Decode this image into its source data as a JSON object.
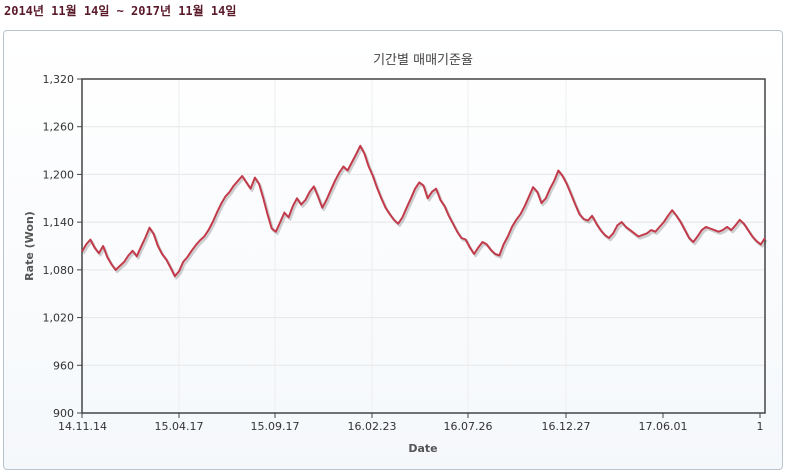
{
  "header": {
    "period_label": "2014년 11월 14일 ~ 2017년 11월 14일"
  },
  "chart_data": {
    "type": "line",
    "title": "기간별 매매기준율",
    "xlabel": "Date",
    "ylabel": "Rate (Won)",
    "ylim": [
      900,
      1320
    ],
    "yticks": [
      "900",
      "960",
      "1,020",
      "1,080",
      "1,140",
      "1,200",
      "1,260",
      "1,320"
    ],
    "ytick_values": [
      900,
      960,
      1020,
      1080,
      1140,
      1200,
      1260,
      1320
    ],
    "xtick_labels": [
      "14.11.14",
      "15.04.17",
      "15.09.17",
      "16.02.23",
      "16.07.26",
      "16.12.27",
      "17.06.01",
      "1"
    ],
    "xtick_positions": [
      0,
      0.167,
      0.334,
      0.5,
      0.667,
      0.833,
      0.999,
      1.0
    ],
    "grid": true,
    "line_color": "#c23b4b",
    "series": [
      {
        "values": [
          1103,
          1112,
          1118,
          1108,
          1101,
          1110,
          1096,
          1087,
          1080,
          1085,
          1090,
          1098,
          1104,
          1097,
          1109,
          1120,
          1133,
          1125,
          1110,
          1100,
          1093,
          1083,
          1072,
          1078,
          1090,
          1096,
          1104,
          1111,
          1117,
          1122,
          1130,
          1140,
          1152,
          1163,
          1172,
          1178,
          1186,
          1192,
          1198,
          1190,
          1182,
          1196,
          1188,
          1170,
          1150,
          1132,
          1128,
          1140,
          1152,
          1146,
          1160,
          1170,
          1162,
          1168,
          1178,
          1185,
          1172,
          1158,
          1168,
          1180,
          1192,
          1202,
          1210,
          1205,
          1215,
          1225,
          1236,
          1226,
          1210,
          1198,
          1183,
          1170,
          1158,
          1150,
          1143,
          1138,
          1146,
          1158,
          1170,
          1182,
          1190,
          1186,
          1170,
          1178,
          1182,
          1168,
          1160,
          1148,
          1138,
          1128,
          1120,
          1118,
          1108,
          1100,
          1108,
          1115,
          1112,
          1105,
          1100,
          1098,
          1112,
          1122,
          1134,
          1143,
          1150,
          1160,
          1172,
          1184,
          1178,
          1164,
          1170,
          1182,
          1192,
          1205,
          1198,
          1188,
          1175,
          1162,
          1150,
          1144,
          1142,
          1148,
          1138,
          1130,
          1124,
          1120,
          1126,
          1136,
          1140,
          1134,
          1130,
          1126,
          1122,
          1124,
          1126,
          1130,
          1128,
          1134,
          1140,
          1148,
          1155,
          1148,
          1140,
          1130,
          1120,
          1115,
          1122,
          1130,
          1134,
          1132,
          1130,
          1128,
          1130,
          1134,
          1130,
          1136,
          1143,
          1138,
          1130,
          1122,
          1116,
          1112,
          1120
        ]
      }
    ]
  }
}
